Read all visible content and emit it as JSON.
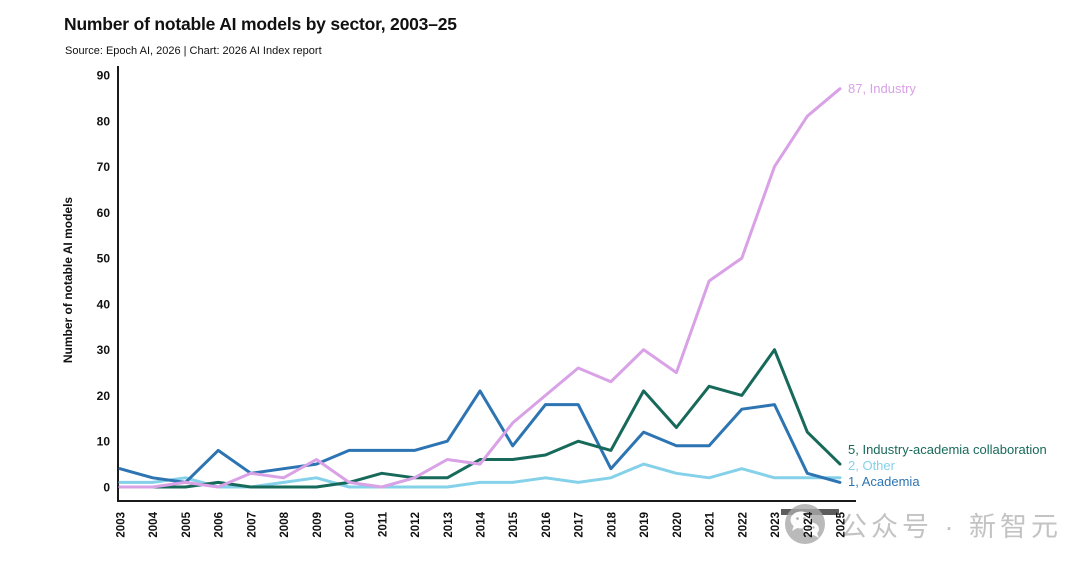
{
  "header": {
    "title": "Number of notable AI models by sector, 2003–25",
    "subtitle": "Source: Epoch AI, 2026 | Chart: 2026 AI Index report"
  },
  "watermark": {
    "text": "公众号 · 新智元",
    "icon": "wechat-icon"
  },
  "chart_data": {
    "type": "line",
    "title": "Number of notable AI models by sector, 2003–25",
    "xlabel": "",
    "ylabel": "Number of notable AI models",
    "ylim": [
      0,
      90
    ],
    "yticks": [
      0,
      10,
      20,
      30,
      40,
      50,
      60,
      70,
      80,
      90
    ],
    "grid": false,
    "legend_position": "end-labels-right",
    "categories": [
      "2003",
      "2004",
      "2005",
      "2006",
      "2007",
      "2008",
      "2009",
      "2010",
      "2011",
      "2012",
      "2013",
      "2014",
      "2015",
      "2016",
      "2017",
      "2018",
      "2019",
      "2020",
      "2021",
      "2022",
      "2023",
      "2024",
      "2025"
    ],
    "series": [
      {
        "name": "Other",
        "color": "#85d1ea",
        "end_label": "2, Other",
        "values": [
          1,
          1,
          2,
          0,
          0,
          1,
          2,
          0,
          0,
          0,
          0,
          1,
          1,
          2,
          1,
          2,
          5,
          3,
          2,
          4,
          2,
          2,
          2
        ]
      },
      {
        "name": "Academia",
        "color": "#2d74b3",
        "end_label": "1, Academia",
        "values": [
          4,
          2,
          1,
          8,
          3,
          4,
          5,
          8,
          8,
          8,
          10,
          21,
          9,
          18,
          18,
          4,
          12,
          9,
          9,
          17,
          18,
          3,
          1
        ]
      },
      {
        "name": "Industry-academia collaboration",
        "color": "#17695a",
        "end_label": "5, Industry-academia collaboration",
        "values": [
          0,
          0,
          0,
          1,
          0,
          0,
          0,
          1,
          3,
          2,
          2,
          6,
          6,
          7,
          10,
          8,
          21,
          13,
          22,
          20,
          30,
          12,
          5
        ]
      },
      {
        "name": "Industry",
        "color": "#d9a1e6",
        "end_label": "87, Industry",
        "values": [
          0,
          0,
          1,
          0,
          3,
          2,
          6,
          1,
          0,
          2,
          6,
          5,
          14,
          20,
          26,
          23,
          30,
          25,
          45,
          50,
          70,
          81,
          87
        ]
      }
    ],
    "axis_color": "#1a1a1a",
    "tick_label_color": "#111111"
  }
}
